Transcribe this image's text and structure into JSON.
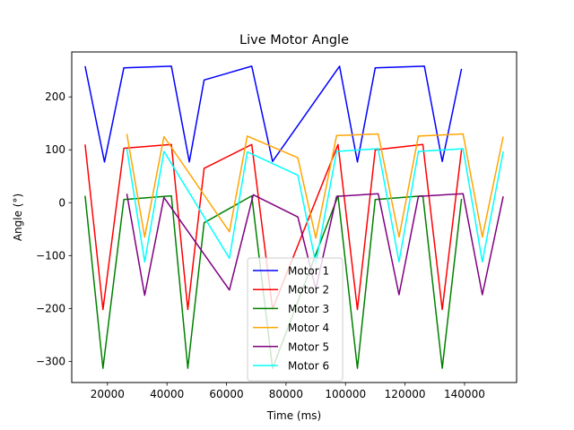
{
  "chart_data": {
    "type": "line",
    "title": "Live Motor Angle",
    "xlabel": "Time (ms)",
    "ylabel": "Angle (°)",
    "xlim": [
      8000,
      157500
    ],
    "ylim": [
      -340,
      285
    ],
    "xticks": [
      20000,
      40000,
      60000,
      80000,
      100000,
      120000,
      140000
    ],
    "yticks": [
      -300,
      -200,
      -100,
      0,
      100,
      200
    ],
    "grid": false,
    "legend_position": "bottom-center",
    "series": [
      {
        "name": "Motor 1",
        "color": "#0000ff",
        "x": [
          12500,
          19000,
          25500,
          41500,
          47500,
          52500,
          68500,
          75500,
          98000,
          104000,
          110000,
          126500,
          132500,
          139000
        ],
        "y": [
          258,
          77,
          255,
          258,
          77,
          232,
          258,
          78,
          258,
          77,
          255,
          258,
          78,
          253
        ]
      },
      {
        "name": "Motor 2",
        "color": "#ff0000",
        "x": [
          12500,
          18500,
          25500,
          41500,
          47000,
          52500,
          68500,
          75500,
          97500,
          104000,
          110000,
          126000,
          132500,
          139000
        ],
        "y": [
          110,
          -202,
          103,
          110,
          -202,
          65,
          110,
          -201,
          110,
          -202,
          100,
          110,
          -202,
          100
        ]
      },
      {
        "name": "Motor 3",
        "color": "#008000",
        "x": [
          12500,
          18500,
          25500,
          41500,
          47000,
          52500,
          68500,
          75500,
          97500,
          104000,
          110000,
          126000,
          132500,
          139000
        ],
        "y": [
          13,
          -313,
          6,
          13,
          -313,
          -38,
          13,
          -313,
          13,
          -313,
          6,
          13,
          -313,
          7
        ]
      },
      {
        "name": "Motor 4",
        "color": "#ffa500",
        "x": [
          26500,
          32500,
          39000,
          61000,
          67000,
          84000,
          90000,
          97000,
          111000,
          118000,
          124500,
          139500,
          146000,
          153000
        ],
        "y": [
          130,
          -65,
          125,
          -55,
          126,
          85,
          -67,
          127,
          130,
          -65,
          126,
          130,
          -65,
          125
        ]
      },
      {
        "name": "Motor 5",
        "color": "#800080",
        "x": [
          26500,
          32500,
          39000,
          61000,
          69000,
          84000,
          90000,
          97000,
          111000,
          118000,
          124500,
          139500,
          146000,
          153000
        ],
        "y": [
          17,
          -175,
          10,
          -165,
          15,
          -27,
          -163,
          12,
          17,
          -174,
          12,
          17,
          -174,
          12
        ]
      },
      {
        "name": "Motor 6",
        "color": "#00ffff",
        "x": [
          26500,
          32500,
          39000,
          61000,
          67000,
          84000,
          90000,
          97000,
          111000,
          118000,
          124500,
          139500,
          146000,
          153000
        ],
        "y": [
          102,
          -112,
          97,
          -105,
          96,
          52,
          -115,
          97,
          102,
          -112,
          97,
          102,
          -112,
          97
        ]
      }
    ]
  }
}
